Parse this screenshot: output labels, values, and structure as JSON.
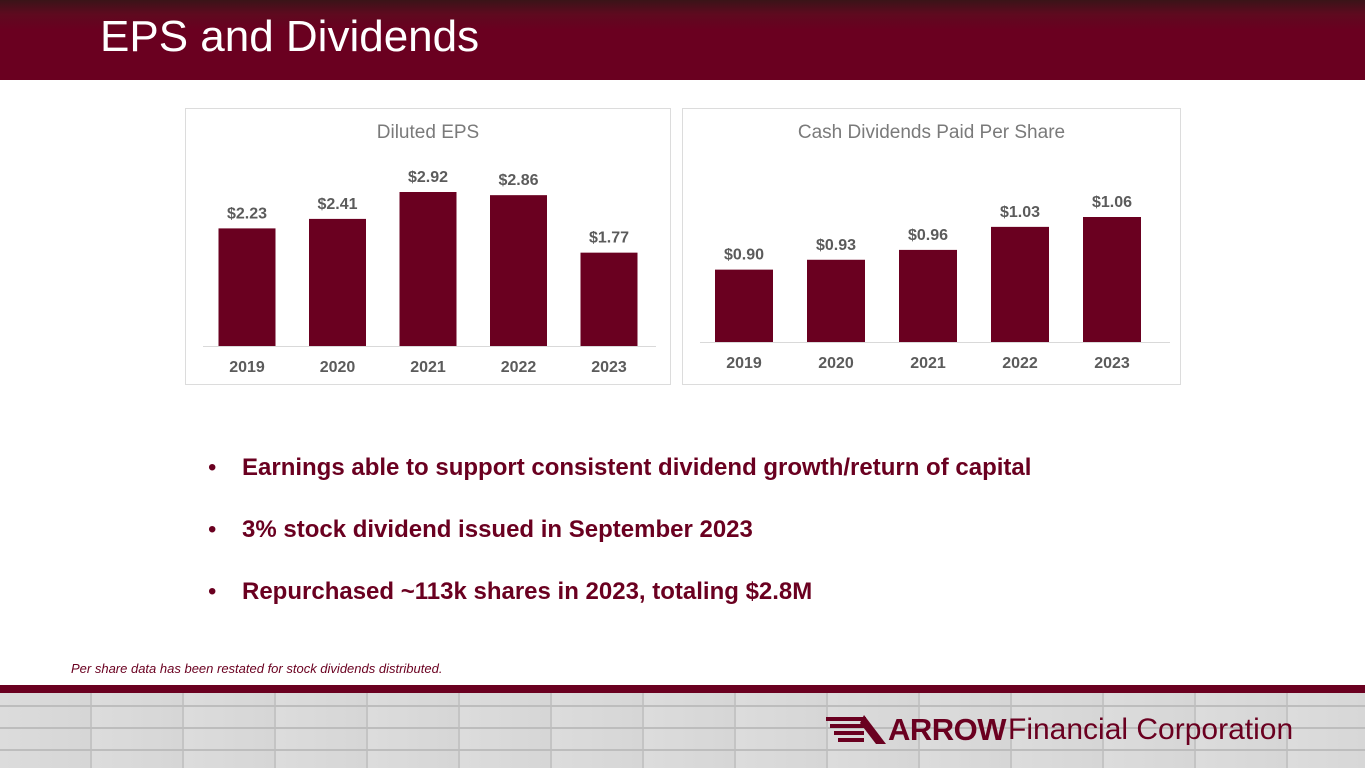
{
  "header": {
    "title": "EPS and Dividends"
  },
  "chart_data": [
    {
      "type": "bar",
      "title": "Diluted EPS",
      "categories": [
        "2019",
        "2020",
        "2021",
        "2022",
        "2023"
      ],
      "values": [
        2.23,
        2.41,
        2.92,
        2.86,
        1.77
      ],
      "data_labels": [
        "$2.23",
        "$2.41",
        "$2.92",
        "$2.86",
        "$1.77"
      ],
      "xlabel": "",
      "ylabel": "",
      "ylim": [
        0,
        2.92
      ],
      "grid": false,
      "bar_color": "#6a0020"
    },
    {
      "type": "bar",
      "title": "Cash Dividends Paid Per Share",
      "categories": [
        "2019",
        "2020",
        "2021",
        "2022",
        "2023"
      ],
      "values": [
        0.9,
        0.93,
        0.96,
        1.03,
        1.06
      ],
      "data_labels": [
        "$0.90",
        "$0.93",
        "$0.96",
        "$1.03",
        "$1.06"
      ],
      "xlabel": "",
      "ylabel": "",
      "ylim": [
        0.68,
        1.06
      ],
      "grid": false,
      "bar_color": "#6a0020"
    }
  ],
  "bullets": [
    "Earnings able to support consistent dividend growth/return of capital",
    "3% stock dividend issued in September 2023",
    "Repurchased ~113k shares in 2023, totaling $2.8M"
  ],
  "bullet_glyph": "•",
  "footnote": "Per share data has been restated for stock dividends distributed.",
  "logo": {
    "brand": "ARROW",
    "tagline": "Financial Corporation"
  },
  "colors": {
    "brand": "#6a0020",
    "label_gray": "#5b5b5b",
    "title_gray": "#7a7a7a"
  }
}
